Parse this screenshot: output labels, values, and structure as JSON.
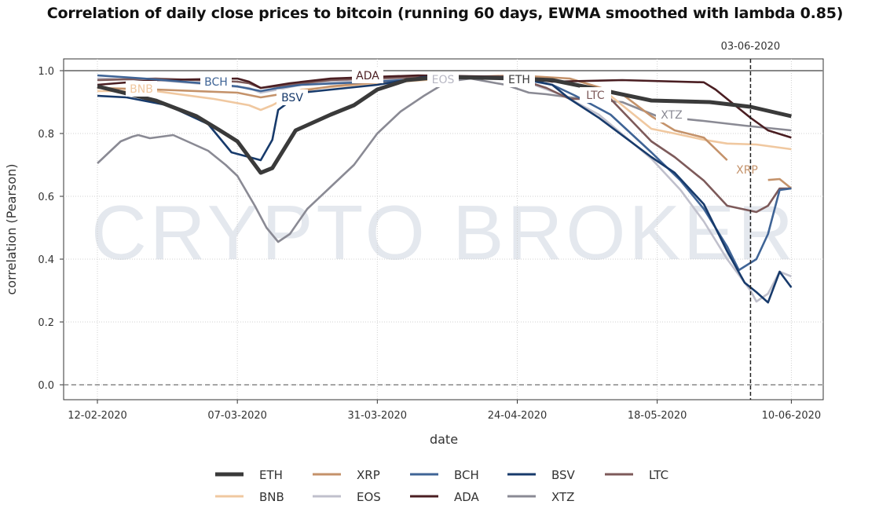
{
  "title": "Correlation of daily close prices to bitcoin (running 60 days, EWMA smoothed with lambda 0.85)",
  "chart_data": {
    "type": "line",
    "title": "Correlation of daily close prices to bitcoin (running 60 days, EWMA smoothed with lambda 0.85)",
    "xlabel": "date",
    "ylabel": "correlation (Pearson)",
    "xlim": [
      "06-02-2020",
      "16-06-2020"
    ],
    "ylim": [
      -0.05,
      1.04
    ],
    "xticks": [
      "12-02-2020",
      "07-03-2020",
      "31-03-2020",
      "24-04-2020",
      "18-05-2020",
      "10-06-2020"
    ],
    "yticks": [
      "0.0",
      "0.2",
      "0.4",
      "0.6",
      "0.8",
      "1.0"
    ],
    "grid": true,
    "watermark": "CRYPTO BROKER",
    "reference_lines": {
      "horizontal_solid": 1.0,
      "horizontal_dashed": 0.0
    },
    "vline": {
      "date": "03-06-2020",
      "label": "03-06-2020"
    },
    "legend_placement": "bottom",
    "series": [
      {
        "name": "ETH",
        "color": "#3a3a3a",
        "points": [
          [
            "12-02-2020",
            0.95
          ],
          [
            "22-02-2020",
            0.905
          ],
          [
            "29-02-2020",
            0.855
          ],
          [
            "04-03-2020",
            0.81
          ],
          [
            "07-03-2020",
            0.775
          ],
          [
            "11-03-2020",
            0.675
          ],
          [
            "13-03-2020",
            0.69
          ],
          [
            "17-03-2020",
            0.81
          ],
          [
            "23-03-2020",
            0.86
          ],
          [
            "27-03-2020",
            0.89
          ],
          [
            "31-03-2020",
            0.94
          ],
          [
            "05-04-2020",
            0.97
          ],
          [
            "11-04-2020",
            0.98
          ],
          [
            "24-04-2020",
            0.975
          ],
          [
            "30-04-2020",
            0.97
          ],
          [
            "08-05-2020",
            0.94
          ],
          [
            "17-05-2020",
            0.905
          ],
          [
            "27-05-2020",
            0.9
          ],
          [
            "03-06-2020",
            0.885
          ],
          [
            "10-06-2020",
            0.855
          ]
        ]
      },
      {
        "name": "XRP",
        "color": "#c4926a",
        "points": [
          [
            "12-02-2020",
            0.945
          ],
          [
            "22-02-2020",
            0.94
          ],
          [
            "07-03-2020",
            0.93
          ],
          [
            "11-03-2020",
            0.915
          ],
          [
            "16-03-2020",
            0.93
          ],
          [
            "23-03-2020",
            0.95
          ],
          [
            "07-04-2020",
            0.975
          ],
          [
            "24-04-2020",
            0.985
          ],
          [
            "03-05-2020",
            0.975
          ],
          [
            "12-05-2020",
            0.925
          ],
          [
            "17-05-2020",
            0.855
          ],
          [
            "21-05-2020",
            0.81
          ],
          [
            "26-05-2020",
            0.787
          ],
          [
            "30-05-2020",
            0.715
          ],
          [
            "02-06-2020",
            null
          ],
          [
            "06-06-2020",
            0.652
          ],
          [
            "08-06-2020",
            0.655
          ],
          [
            "10-06-2020",
            0.625
          ]
        ]
      },
      {
        "name": "BCH",
        "color": "#3f6496",
        "points": [
          [
            "12-02-2020",
            0.985
          ],
          [
            "20-02-2020",
            0.975
          ],
          [
            "01-03-2020",
            0.96
          ],
          [
            "07-03-2020",
            0.95
          ],
          [
            "11-03-2020",
            0.935
          ],
          [
            "14-03-2020",
            0.945
          ],
          [
            "18-03-2020",
            0.955
          ],
          [
            "31-03-2020",
            0.965
          ],
          [
            "12-04-2020",
            0.98
          ],
          [
            "24-04-2020",
            0.975
          ],
          [
            "30-04-2020",
            0.955
          ],
          [
            "04-05-2020",
            0.92
          ],
          [
            "10-05-2020",
            0.86
          ],
          [
            "17-05-2020",
            0.74
          ],
          [
            "22-05-2020",
            0.65
          ],
          [
            "26-05-2020",
            0.56
          ],
          [
            "30-05-2020",
            0.44
          ],
          [
            "01-06-2020",
            0.365
          ],
          [
            "04-06-2020",
            0.4
          ],
          [
            "06-06-2020",
            0.48
          ],
          [
            "08-06-2020",
            0.62
          ],
          [
            "10-06-2020",
            0.625
          ]
        ]
      },
      {
        "name": "BSV",
        "color": "#173a6b",
        "points": [
          [
            "12-02-2020",
            0.92
          ],
          [
            "17-02-2020",
            0.915
          ],
          [
            "24-02-2020",
            0.89
          ],
          [
            "02-03-2020",
            0.83
          ],
          [
            "06-03-2020",
            0.74
          ],
          [
            "11-03-2020",
            0.715
          ],
          [
            "13-03-2020",
            0.78
          ],
          [
            "14-03-2020",
            0.875
          ],
          [
            "18-03-2020",
            0.93
          ],
          [
            "31-03-2020",
            0.955
          ],
          [
            "08-04-2020",
            0.98
          ],
          [
            "24-04-2020",
            0.98
          ],
          [
            "30-04-2020",
            0.955
          ],
          [
            "03-05-2020",
            0.91
          ],
          [
            "08-05-2020",
            0.85
          ],
          [
            "17-05-2020",
            0.725
          ],
          [
            "21-05-2020",
            0.675
          ],
          [
            "26-05-2020",
            0.575
          ],
          [
            "30-05-2020",
            0.425
          ],
          [
            "02-06-2020",
            0.325
          ],
          [
            "04-06-2020",
            0.295
          ],
          [
            "06-06-2020",
            0.262
          ],
          [
            "08-06-2020",
            0.36
          ],
          [
            "10-06-2020",
            0.31
          ]
        ]
      },
      {
        "name": "LTC",
        "color": "#7d5a5a",
        "points": [
          [
            "12-02-2020",
            0.97
          ],
          [
            "22-02-2020",
            0.975
          ],
          [
            "07-03-2020",
            0.965
          ],
          [
            "09-03-2020",
            0.96
          ],
          [
            "11-03-2020",
            0.945
          ],
          [
            "16-03-2020",
            0.955
          ],
          [
            "23-03-2020",
            0.97
          ],
          [
            "07-04-2020",
            0.98
          ],
          [
            "24-04-2020",
            0.975
          ],
          [
            "29-04-2020",
            0.945
          ],
          [
            "03-05-2020",
            0.91
          ],
          [
            "10-05-2020",
            0.91
          ],
          [
            "17-05-2020",
            0.775
          ],
          [
            "21-05-2020",
            0.725
          ],
          [
            "26-05-2020",
            0.65
          ],
          [
            "30-05-2020",
            0.57
          ],
          [
            "04-06-2020",
            0.55
          ],
          [
            "06-06-2020",
            0.57
          ],
          [
            "08-06-2020",
            0.625
          ],
          [
            "10-06-2020",
            0.625
          ]
        ]
      },
      {
        "name": "BNB",
        "color": "#f0c8a0",
        "points": [
          [
            "12-02-2020",
            0.935
          ],
          [
            "22-02-2020",
            0.935
          ],
          [
            "03-03-2020",
            0.91
          ],
          [
            "09-03-2020",
            0.89
          ],
          [
            "11-03-2020",
            0.875
          ],
          [
            "13-03-2020",
            0.89
          ],
          [
            "18-03-2020",
            0.94
          ],
          [
            "31-03-2020",
            0.96
          ],
          [
            "12-04-2020",
            0.975
          ],
          [
            "24-04-2020",
            0.98
          ],
          [
            "02-05-2020",
            0.965
          ],
          [
            "10-05-2020",
            0.92
          ],
          [
            "17-05-2020",
            0.815
          ],
          [
            "21-05-2020",
            0.8
          ],
          [
            "26-05-2020",
            0.78
          ],
          [
            "30-05-2020",
            0.768
          ],
          [
            "04-06-2020",
            0.765
          ],
          [
            "10-06-2020",
            0.75
          ]
        ]
      },
      {
        "name": "EOS",
        "color": "#c0c0cc",
        "points": [
          [
            "12-02-2020",
            0.975
          ],
          [
            "22-02-2020",
            0.97
          ],
          [
            "03-03-2020",
            0.955
          ],
          [
            "09-03-2020",
            0.945
          ],
          [
            "11-03-2020",
            0.93
          ],
          [
            "14-03-2020",
            0.94
          ],
          [
            "19-03-2020",
            0.96
          ],
          [
            "31-03-2020",
            0.97
          ],
          [
            "12-04-2020",
            0.985
          ],
          [
            "24-04-2020",
            0.975
          ],
          [
            "02-05-2020",
            0.92
          ],
          [
            "08-05-2020",
            0.86
          ],
          [
            "17-05-2020",
            0.72
          ],
          [
            "22-05-2020",
            0.62
          ],
          [
            "26-05-2020",
            0.52
          ],
          [
            "30-05-2020",
            0.4
          ],
          [
            "03-06-2020",
            0.3
          ],
          [
            "04-06-2020",
            0.265
          ],
          [
            "06-06-2020",
            0.29
          ],
          [
            "08-06-2020",
            0.36
          ],
          [
            "10-06-2020",
            0.345
          ]
        ]
      },
      {
        "name": "ADA",
        "color": "#4a1e22",
        "points": [
          [
            "12-02-2020",
            0.955
          ],
          [
            "22-02-2020",
            0.97
          ],
          [
            "07-03-2020",
            0.975
          ],
          [
            "09-03-2020",
            0.965
          ],
          [
            "11-03-2020",
            0.945
          ],
          [
            "16-03-2020",
            0.96
          ],
          [
            "23-03-2020",
            0.975
          ],
          [
            "07-04-2020",
            0.985
          ],
          [
            "24-04-2020",
            0.98
          ],
          [
            "30-04-2020",
            0.965
          ],
          [
            "12-05-2020",
            0.97
          ],
          [
            "26-05-2020",
            0.963
          ],
          [
            "28-05-2020",
            0.94
          ],
          [
            "30-05-2020",
            0.91
          ],
          [
            "03-06-2020",
            0.85
          ],
          [
            "06-06-2020",
            0.81
          ],
          [
            "10-06-2020",
            0.787
          ]
        ]
      },
      {
        "name": "XTZ",
        "color": "#8a8a94",
        "points": [
          [
            "12-02-2020",
            0.705
          ],
          [
            "14-02-2020",
            0.74
          ],
          [
            "16-02-2020",
            0.775
          ],
          [
            "18-02-2020",
            0.79
          ],
          [
            "19-02-2020",
            0.795
          ],
          [
            "21-02-2020",
            0.785
          ],
          [
            "23-02-2020",
            0.79
          ],
          [
            "25-02-2020",
            0.795
          ],
          [
            "28-02-2020",
            0.77
          ],
          [
            "02-03-2020",
            0.745
          ],
          [
            "05-03-2020",
            0.7
          ],
          [
            "07-03-2020",
            0.665
          ],
          [
            "10-03-2020",
            0.57
          ],
          [
            "12-03-2020",
            0.5
          ],
          [
            "14-03-2020",
            0.455
          ],
          [
            "16-03-2020",
            0.48
          ],
          [
            "19-03-2020",
            0.56
          ],
          [
            "23-03-2020",
            0.63
          ],
          [
            "27-03-2020",
            0.7
          ],
          [
            "31-03-2020",
            0.8
          ],
          [
            "04-04-2020",
            0.87
          ],
          [
            "08-04-2020",
            0.92
          ],
          [
            "12-04-2020",
            0.965
          ],
          [
            "16-04-2020",
            0.975
          ],
          [
            "22-04-2020",
            0.955
          ],
          [
            "26-04-2020",
            0.93
          ],
          [
            "29-04-2020",
            0.925
          ],
          [
            "03-05-2020",
            0.915
          ],
          [
            "12-05-2020",
            0.9
          ],
          [
            "18-05-2020",
            0.855
          ],
          [
            "26-05-2020",
            0.84
          ],
          [
            "02-06-2020",
            0.825
          ],
          [
            "10-06-2020",
            0.81
          ]
        ]
      }
    ]
  }
}
